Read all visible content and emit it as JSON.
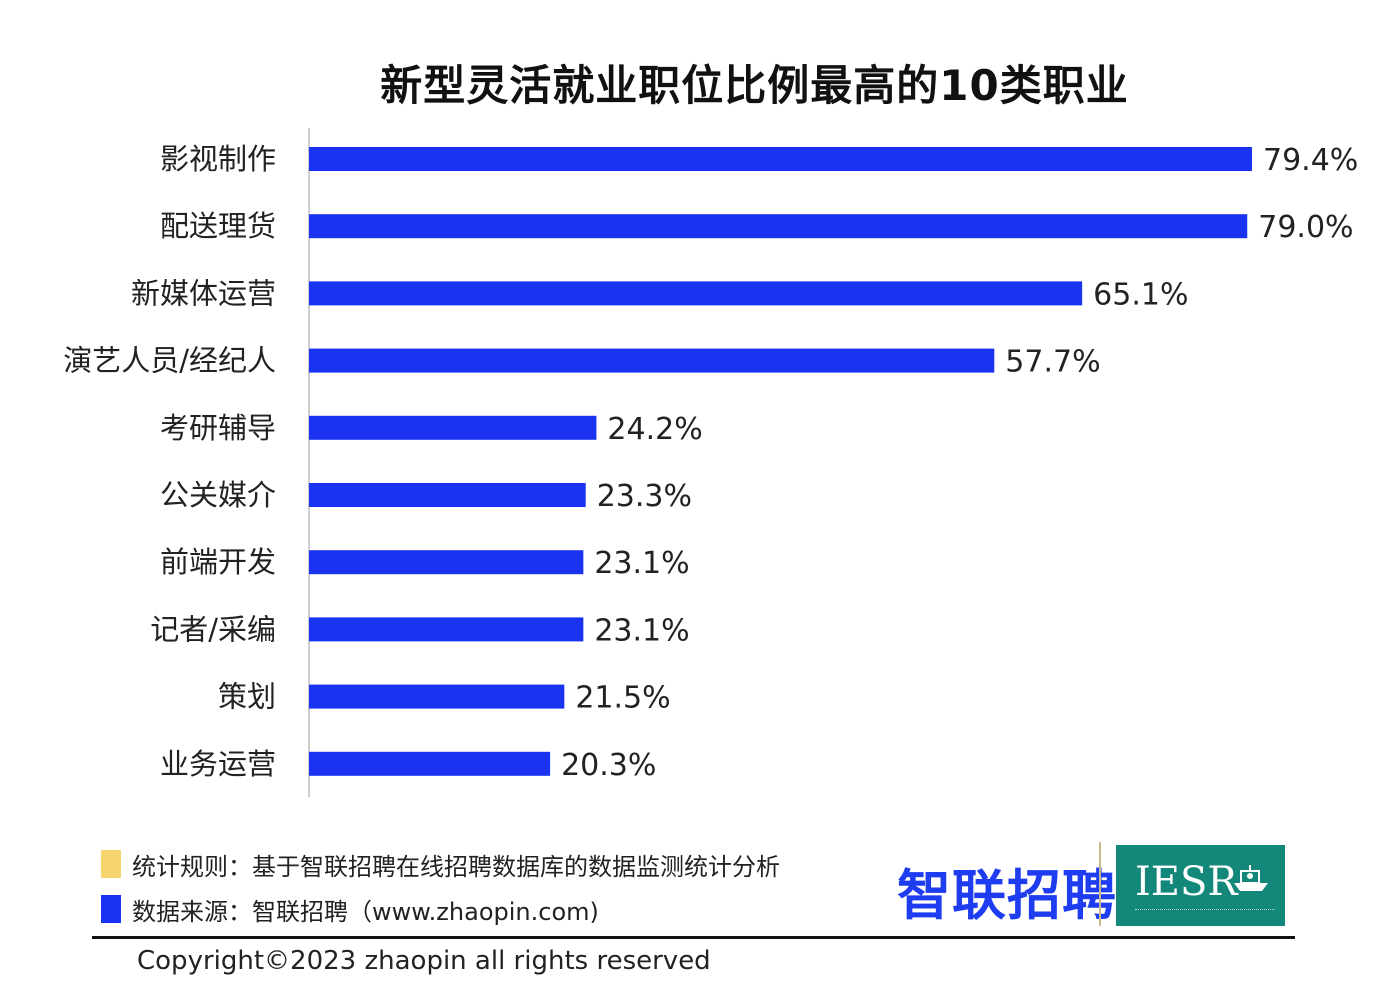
{
  "chart_data": {
    "type": "bar",
    "orientation": "horizontal",
    "title": "新型灵活就业职位比例最高的10类职业",
    "categories": [
      "影视制作",
      "配送理货",
      "新媒体运营",
      "演艺人员/经纪人",
      "考研辅导",
      "公关媒介",
      "前端开发",
      "记者/采编",
      "策划",
      "业务运营"
    ],
    "values": [
      79.4,
      79.0,
      65.1,
      57.7,
      24.2,
      23.3,
      23.1,
      23.1,
      21.5,
      20.3
    ],
    "value_labels": [
      "79.4%",
      "79.0%",
      "65.1%",
      "57.7%",
      "24.2%",
      "23.3%",
      "23.1%",
      "23.1%",
      "21.5%",
      "20.3%"
    ],
    "xlim": [
      0,
      80
    ],
    "grid": false,
    "bar_color": "#1a33f0"
  },
  "footer": {
    "notes": [
      {
        "text": "统计规则：基于智联招聘在线招聘数据库的数据监测统计分析",
        "color": "#f7d36b"
      },
      {
        "text": "数据来源：智联招聘（www.zhaopin.com)",
        "color": "#1a33f0"
      }
    ],
    "brand_text": "智联招聘",
    "partner_logo_text": "IESR",
    "copyright": "Copyright©2023 zhaopin all rights reserved"
  }
}
